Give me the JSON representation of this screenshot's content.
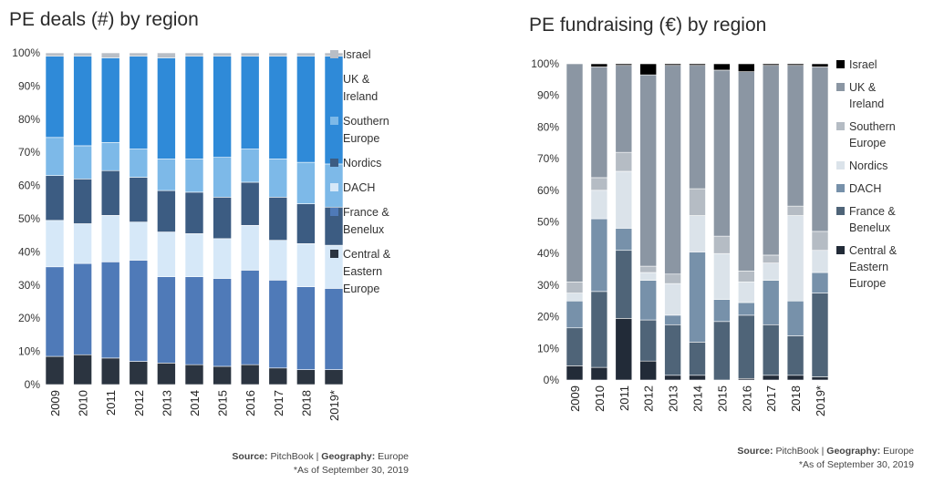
{
  "source_lines": [
    {
      "source_label": "Source:",
      "source_value": "PitchBook",
      "sep": " | ",
      "geo_label": "Geography:",
      "geo_value": "Europe"
    },
    {
      "source_label": "Source:",
      "source_value": "PitchBook",
      "sep": " | ",
      "geo_label": "Geography:",
      "geo_value": "Europe"
    }
  ],
  "footnotes": [
    "*As of September 30, 2019",
    "*As of September 30, 2019"
  ],
  "chart_data": [
    {
      "type": "bar",
      "stacked": true,
      "title": "PE deals (#) by region",
      "categories": [
        "2009",
        "2010",
        "2011",
        "2012",
        "2013",
        "2014",
        "2015",
        "2016",
        "2017",
        "2018",
        "2019*"
      ],
      "ylim": [
        0,
        100
      ],
      "yticks": [
        "0%",
        "10%",
        "20%",
        "30%",
        "40%",
        "50%",
        "60%",
        "70%",
        "80%",
        "90%",
        "100%"
      ],
      "legend_position": "right",
      "grid": false,
      "series": [
        {
          "name": "Central & Eastern Europe",
          "color": "#2b3440",
          "values": [
            8.5,
            9,
            8,
            7,
            6.5,
            6,
            5.5,
            6,
            5,
            4.5,
            4.5
          ]
        },
        {
          "name": "France & Benelux",
          "color": "#4f7ab8",
          "values": [
            27,
            27.5,
            29,
            30.5,
            26,
            26.5,
            26.5,
            28.5,
            26.5,
            25,
            24.5
          ]
        },
        {
          "name": "DACH",
          "color": "#d6e8f8",
          "values": [
            14,
            12,
            14,
            11.5,
            13.5,
            13,
            12,
            13.5,
            12,
            13,
            13
          ]
        },
        {
          "name": "Nordics",
          "color": "#3c5c82",
          "values": [
            13.5,
            13.5,
            13.5,
            13.5,
            12.5,
            12.5,
            12.5,
            13,
            13,
            12,
            11.5
          ]
        },
        {
          "name": "Southern Europe",
          "color": "#7db9e8",
          "values": [
            11.5,
            10,
            8.5,
            8.5,
            9.5,
            10,
            12,
            10,
            11.5,
            12.5,
            13
          ]
        },
        {
          "name": "UK & Ireland",
          "color": "#2f8ad8",
          "values": [
            24.5,
            27,
            25.5,
            28,
            30.5,
            31,
            30.5,
            28,
            31,
            32,
            32.5
          ]
        },
        {
          "name": "Israel",
          "color": "#b8bec6",
          "values": [
            1,
            1,
            1.5,
            1,
            1.5,
            1,
            1,
            1,
            1,
            1,
            1
          ]
        }
      ]
    },
    {
      "type": "bar",
      "stacked": true,
      "title": "PE fundraising (€) by region",
      "categories": [
        "2009",
        "2010",
        "2011",
        "2012",
        "2013",
        "2014",
        "2015",
        "2016",
        "2017",
        "2018",
        "2019*"
      ],
      "ylim": [
        0,
        100
      ],
      "yticks": [
        "0%",
        "10%",
        "20%",
        "30%",
        "40%",
        "50%",
        "60%",
        "70%",
        "80%",
        "90%",
        "100%"
      ],
      "legend_position": "right",
      "grid": false,
      "series": [
        {
          "name": "Central & Eastern Europe",
          "color": "#222b38",
          "values": [
            4.5,
            4,
            19.5,
            6,
            1.5,
            1.5,
            0,
            0.5,
            1.5,
            1.5,
            1
          ]
        },
        {
          "name": "France & Benelux",
          "color": "#4f6478",
          "values": [
            12,
            24,
            21.5,
            13,
            16,
            10.5,
            18.5,
            20,
            16,
            12.5,
            26.5
          ]
        },
        {
          "name": "DACH",
          "color": "#7791aa",
          "values": [
            8.5,
            23,
            7,
            12.5,
            3,
            28.5,
            7,
            4,
            14,
            11,
            6.5
          ]
        },
        {
          "name": "Nordics",
          "color": "#dbe3ea",
          "values": [
            2.5,
            9,
            18,
            2.5,
            10,
            11.5,
            14.5,
            6.5,
            5.5,
            27,
            7
          ]
        },
        {
          "name": "Southern Europe",
          "color": "#b5bcc4",
          "values": [
            3.5,
            4,
            6,
            2,
            3,
            8.5,
            5.5,
            3.5,
            2.5,
            3,
            6
          ]
        },
        {
          "name": "UK & Ireland",
          "color": "#8b96a3",
          "values": [
            69,
            35,
            27.5,
            60.5,
            66,
            39,
            52.5,
            63,
            60,
            44.5,
            52
          ]
        },
        {
          "name": "Israel",
          "color": "#000000",
          "values": [
            0,
            1,
            0.5,
            3.5,
            0.5,
            0.5,
            2,
            2.5,
            0.5,
            0.5,
            1
          ]
        }
      ]
    }
  ]
}
